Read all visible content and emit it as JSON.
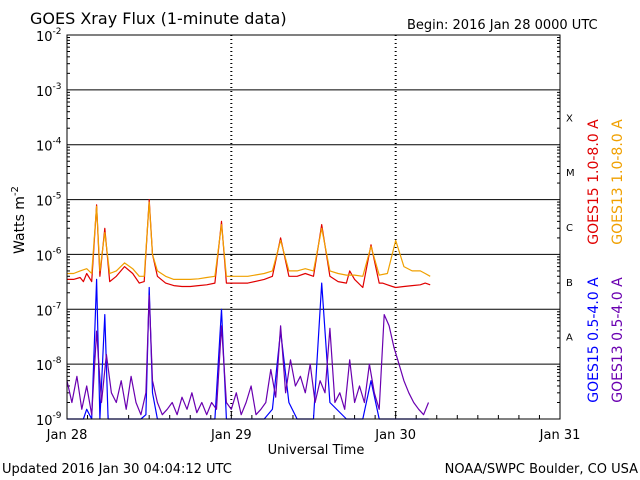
{
  "chart_data": {
    "type": "line",
    "title": "GOES Xray Flux (1-minute data)",
    "begin_label": "Begin:  2016 Jan 28 0000 UTC",
    "ylabel": "Watts m",
    "ylabel_sup": "-2",
    "xlabel": "Universal Time",
    "yscale": "log",
    "ylim": [
      1e-09,
      0.01
    ],
    "y_ticks": [
      {
        "exp": -2,
        "label": "10",
        "sup": "-2"
      },
      {
        "exp": -3,
        "label": "10",
        "sup": "-3"
      },
      {
        "exp": -4,
        "label": "10",
        "sup": "-4"
      },
      {
        "exp": -5,
        "label": "10",
        "sup": "-5"
      },
      {
        "exp": -6,
        "label": "10",
        "sup": "-6"
      },
      {
        "exp": -7,
        "label": "10",
        "sup": "-7"
      },
      {
        "exp": -8,
        "label": "10",
        "sup": "-8"
      },
      {
        "exp": -9,
        "label": "10",
        "sup": "-9"
      }
    ],
    "x_ticks": [
      {
        "day": 0,
        "label": "Jan 28"
      },
      {
        "day": 1,
        "label": "Jan 29"
      },
      {
        "day": 2,
        "label": "Jan 30"
      },
      {
        "day": 3,
        "label": "Jan 31"
      }
    ],
    "xlim_days": [
      0,
      3
    ],
    "flare_classes": [
      {
        "label": "X",
        "exp": -3.5
      },
      {
        "label": "M",
        "exp": -4.5
      },
      {
        "label": "C",
        "exp": -5.5
      },
      {
        "label": "B",
        "exp": -6.5
      },
      {
        "label": "A",
        "exp": -7.5
      }
    ],
    "series": [
      {
        "name": "GOES15 1.0-8.0 A",
        "color": "#e00000",
        "x": [
          0.0,
          0.04,
          0.08,
          0.1,
          0.12,
          0.15,
          0.18,
          0.2,
          0.23,
          0.26,
          0.3,
          0.35,
          0.4,
          0.44,
          0.47,
          0.5,
          0.52,
          0.55,
          0.6,
          0.65,
          0.7,
          0.75,
          0.8,
          0.85,
          0.9,
          0.94,
          0.97,
          1.0,
          1.05,
          1.1,
          1.2,
          1.25,
          1.3,
          1.35,
          1.4,
          1.45,
          1.5,
          1.55,
          1.6,
          1.65,
          1.7,
          1.72,
          1.75,
          1.8,
          1.85,
          1.9,
          1.92,
          1.95,
          1.98,
          2.0,
          2.05,
          2.1,
          2.15,
          2.18,
          2.21
        ],
        "y": [
          3.5e-07,
          3.5e-07,
          3.8e-07,
          3.2e-07,
          4.5e-07,
          3.2e-07,
          8e-06,
          4e-07,
          3e-06,
          3.2e-07,
          4e-07,
          6e-07,
          4.5e-07,
          3e-07,
          3.2e-07,
          1e-05,
          1e-06,
          4e-07,
          3e-07,
          2.7e-07,
          2.6e-07,
          2.6e-07,
          2.7e-07,
          2.8e-07,
          3e-07,
          4e-06,
          3e-07,
          3e-07,
          3e-07,
          3e-07,
          3.5e-07,
          4e-07,
          2e-06,
          4e-07,
          4e-07,
          4.5e-07,
          4e-07,
          3.5e-06,
          4e-07,
          3.2e-07,
          3e-07,
          5e-07,
          3.5e-07,
          2.5e-07,
          1.5e-06,
          3e-07,
          3e-07,
          2.8e-07,
          2.6e-07,
          2.5e-07,
          2.6e-07,
          2.7e-07,
          2.8e-07,
          3e-07,
          2.8e-07
        ]
      },
      {
        "name": "GOES13 1.0-8.0 A",
        "color": "#f0a000",
        "x": [
          0.0,
          0.04,
          0.08,
          0.12,
          0.15,
          0.18,
          0.2,
          0.23,
          0.26,
          0.3,
          0.35,
          0.4,
          0.44,
          0.47,
          0.5,
          0.52,
          0.55,
          0.6,
          0.65,
          0.7,
          0.75,
          0.8,
          0.85,
          0.9,
          0.94,
          0.97,
          1.0,
          1.05,
          1.1,
          1.2,
          1.25,
          1.3,
          1.35,
          1.4,
          1.45,
          1.5,
          1.55,
          1.6,
          1.65,
          1.7,
          1.75,
          1.8,
          1.85,
          1.9,
          1.95,
          2.0,
          2.05,
          2.1,
          2.15,
          2.18,
          2.21
        ],
        "y": [
          4.5e-07,
          4.5e-07,
          5e-07,
          5.5e-07,
          4.5e-07,
          7.5e-06,
          5e-07,
          2.5e-06,
          4.5e-07,
          5e-07,
          7e-07,
          5.5e-07,
          4e-07,
          4e-07,
          9e-06,
          1e-06,
          5e-07,
          4e-07,
          3.5e-07,
          3.5e-07,
          3.5e-07,
          3.6e-07,
          3.8e-07,
          4e-07,
          3.5e-06,
          4e-07,
          4e-07,
          4e-07,
          4e-07,
          4.5e-07,
          5e-07,
          1.8e-06,
          5e-07,
          5e-07,
          5.5e-07,
          5e-07,
          3e-06,
          5e-07,
          4.5e-07,
          4.2e-07,
          4.2e-07,
          4e-07,
          1.4e-06,
          4.2e-07,
          4.5e-07,
          1.8e-06,
          6e-07,
          5e-07,
          5e-07,
          4.5e-07,
          4e-07
        ]
      },
      {
        "name": "GOES15 0.5-4.0 A",
        "color": "#0000ff",
        "x": [
          0.0,
          0.05,
          0.1,
          0.12,
          0.15,
          0.18,
          0.2,
          0.23,
          0.25,
          0.3,
          0.35,
          0.4,
          0.45,
          0.48,
          0.5,
          0.52,
          0.55,
          0.6,
          0.7,
          0.8,
          0.9,
          0.94,
          0.97,
          1.0,
          1.1,
          1.2,
          1.25,
          1.3,
          1.35,
          1.4,
          1.45,
          1.5,
          1.55,
          1.6,
          1.7,
          1.75,
          1.8,
          1.85,
          1.9,
          1.95,
          2.0,
          2.05,
          2.1,
          2.15,
          2.2
        ],
        "y": [
          1e-09,
          1e-09,
          1e-09,
          1.5e-09,
          1e-09,
          3.5e-07,
          1e-09,
          8e-08,
          1e-09,
          1e-09,
          1e-09,
          1e-09,
          1e-09,
          1.2e-09,
          2.5e-07,
          3e-09,
          1e-09,
          1e-09,
          1e-09,
          1e-09,
          1e-09,
          1e-07,
          1e-09,
          1e-09,
          1e-09,
          1e-09,
          1.5e-09,
          4e-08,
          2e-09,
          1e-09,
          1e-09,
          1e-09,
          3e-07,
          2e-09,
          1e-09,
          1e-09,
          1e-09,
          5e-09,
          1e-09,
          1e-09,
          1e-09,
          1e-09,
          1e-09,
          1e-09,
          1e-09
        ]
      },
      {
        "name": "GOES13 0.5-4.0 A",
        "color": "#6a00b0",
        "x": [
          0.0,
          0.03,
          0.06,
          0.09,
          0.12,
          0.15,
          0.18,
          0.21,
          0.24,
          0.27,
          0.3,
          0.33,
          0.36,
          0.39,
          0.42,
          0.45,
          0.48,
          0.5,
          0.52,
          0.55,
          0.58,
          0.61,
          0.64,
          0.67,
          0.7,
          0.73,
          0.76,
          0.79,
          0.82,
          0.85,
          0.88,
          0.91,
          0.94,
          0.97,
          1.0,
          1.03,
          1.06,
          1.09,
          1.12,
          1.15,
          1.18,
          1.21,
          1.24,
          1.27,
          1.3,
          1.33,
          1.36,
          1.39,
          1.42,
          1.45,
          1.48,
          1.51,
          1.54,
          1.57,
          1.6,
          1.63,
          1.66,
          1.69,
          1.72,
          1.75,
          1.78,
          1.81,
          1.84,
          1.87,
          1.9,
          1.93,
          1.96,
          1.99,
          2.02,
          2.05,
          2.08,
          2.11,
          2.14,
          2.17,
          2.2
        ],
        "y": [
          5e-09,
          2e-09,
          6e-09,
          1.5e-09,
          4e-09,
          1.2e-09,
          4e-08,
          2e-09,
          1.5e-08,
          3e-09,
          2e-09,
          5e-09,
          1.5e-09,
          6e-09,
          2e-09,
          1.2e-09,
          3e-09,
          1.8e-07,
          5e-09,
          2e-09,
          1.2e-09,
          1.5e-09,
          2e-09,
          1.2e-09,
          2.5e-09,
          1.5e-09,
          3e-09,
          1.3e-09,
          2e-09,
          1.2e-09,
          2e-09,
          1.5e-09,
          5e-08,
          2e-09,
          1.5e-09,
          3e-09,
          1.2e-09,
          2e-09,
          4e-09,
          1.2e-09,
          1.5e-09,
          2e-09,
          8e-09,
          2.5e-09,
          5e-08,
          3e-09,
          1.2e-08,
          4e-09,
          6e-09,
          3e-09,
          1e-08,
          2e-09,
          5e-09,
          3e-09,
          4.5e-08,
          2e-09,
          3e-09,
          1.5e-09,
          1.2e-08,
          2e-09,
          4e-09,
          2e-09,
          1e-08,
          3e-09,
          1.5e-09,
          8e-08,
          5e-08,
          2e-08,
          1e-08,
          5e-09,
          3e-09,
          2e-09,
          1.5e-09,
          1.2e-09,
          2e-09
        ]
      }
    ],
    "legend_placement": "right, vertical",
    "grid": "horizontal lines at each decade; dotted vertical day dividers"
  },
  "footer": {
    "updated": "Updated 2016 Jan 30 04:04:12 UTC",
    "credit": "NOAA/SWPC Boulder, CO USA"
  }
}
